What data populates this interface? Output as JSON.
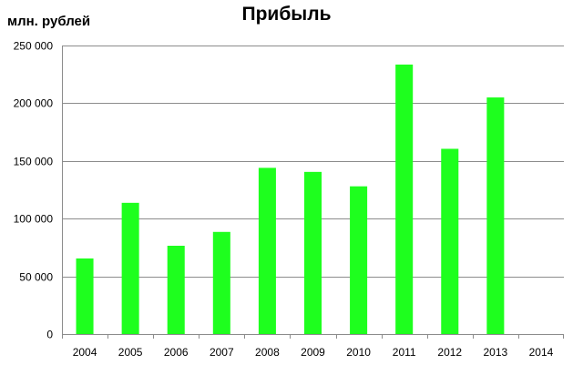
{
  "chart_data": {
    "type": "bar",
    "title": "Прибыль",
    "ylabel": "млн. рублей",
    "xlabel": "",
    "categories": [
      "2004",
      "2005",
      "2006",
      "2007",
      "2008",
      "2009",
      "2010",
      "2011",
      "2012",
      "2013",
      "2014"
    ],
    "values": [
      65500,
      113700,
      76500,
      88500,
      144000,
      140500,
      128000,
      233500,
      160500,
      205000,
      null
    ],
    "ylim": [
      0,
      250000
    ],
    "yticks": [
      0,
      50000,
      100000,
      150000,
      200000,
      250000
    ],
    "ytick_labels": [
      "0",
      "50 000",
      "100 000",
      "150 000",
      "200 000",
      "250 000"
    ],
    "bar_color": "#1eff1e",
    "grid": true,
    "legend": "none"
  }
}
